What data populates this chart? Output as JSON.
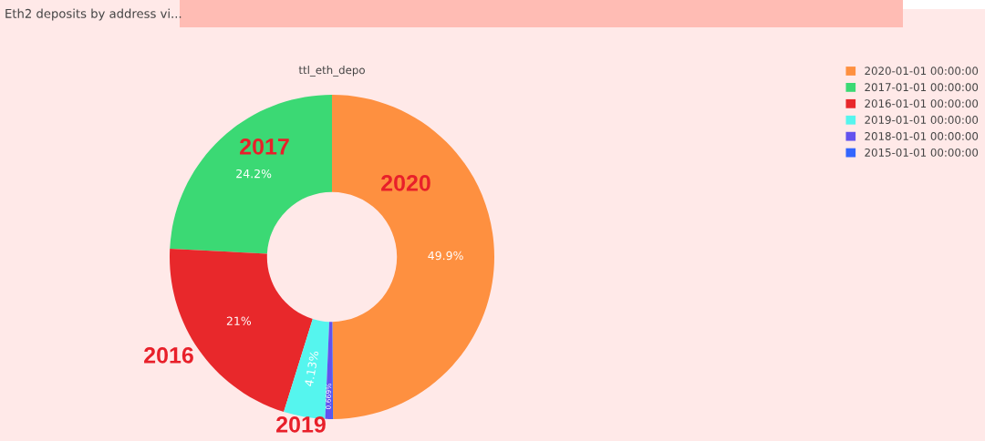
{
  "chart_data": {
    "type": "donut",
    "title": "Eth2 deposits by address vi...",
    "subtitle": "ttl_eth_depo",
    "categories": [
      "2020-01-01 00:00:00",
      "2017-01-01 00:00:00",
      "2016-01-01 00:00:00",
      "2019-01-01 00:00:00",
      "2018-01-01 00:00:00",
      "2015-01-01 00:00:00"
    ],
    "values": [
      49.9,
      24.2,
      21,
      4.13,
      0.669,
      0.1
    ],
    "colors": [
      "#fe9040",
      "#3bd974",
      "#e8282b",
      "#55f5ee",
      "#6352ee",
      "#3366fe"
    ],
    "value_labels": [
      "49.9%",
      "24.2%",
      "21%",
      "4.13%",
      "0.669%",
      null
    ],
    "legend": "top right",
    "annotations": [
      "2020",
      "2017",
      "2016",
      "2019"
    ]
  }
}
